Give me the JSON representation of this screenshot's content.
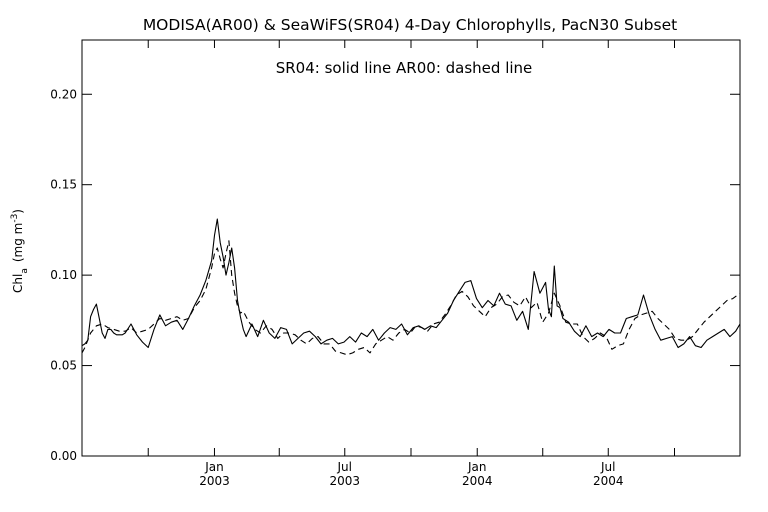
{
  "chart_data": {
    "type": "line",
    "title": "MODISA(AR00) & SeaWiFS(SR04) 4-Day Chlorophylls, PacN30 Subset",
    "annotation": "SR04: solid line   AR00: dashed line",
    "ylabel": "Chl_a (mg m^-3)",
    "ylabel_parts": {
      "main": "Chl",
      "sub": "a",
      "units": "(mg m",
      "sup": "-3",
      "close": ")"
    },
    "xlabel": "",
    "ylim": [
      0,
      0.23
    ],
    "xlim": [
      "2002-07-01",
      "2004-12-31"
    ],
    "yticks": [
      {
        "value": 0.0,
        "label": "0.00"
      },
      {
        "value": 0.05,
        "label": "0.05"
      },
      {
        "value": 0.1,
        "label": "0.10"
      },
      {
        "value": 0.15,
        "label": "0.15"
      },
      {
        "value": 0.2,
        "label": "0.20"
      }
    ],
    "xticks_minor": [
      "2002-10-01",
      "2003-04-01",
      "2003-10-01",
      "2004-04-01",
      "2004-10-01"
    ],
    "xticks_major": [
      {
        "date": "2003-01-01",
        "month": "Jan",
        "year": "2003"
      },
      {
        "date": "2003-07-01",
        "month": "Jul",
        "year": "2003"
      },
      {
        "date": "2004-01-01",
        "month": "Jan",
        "year": "2004"
      },
      {
        "date": "2004-07-01",
        "month": "Jul",
        "year": "2004"
      }
    ],
    "grid": false,
    "series": [
      {
        "name": "SR04",
        "style": "solid",
        "color": "#000000",
        "x": [
          "2002-07-01",
          "2002-07-05",
          "2002-07-09",
          "2002-07-13",
          "2002-07-17",
          "2002-07-21",
          "2002-07-25",
          "2002-07-29",
          "2002-08-02",
          "2002-08-06",
          "2002-08-10",
          "2002-08-14",
          "2002-08-18",
          "2002-08-22",
          "2002-08-26",
          "2002-08-30",
          "2002-09-07",
          "2002-09-15",
          "2002-09-23",
          "2002-10-01",
          "2002-10-09",
          "2002-10-17",
          "2002-10-25",
          "2002-11-02",
          "2002-11-10",
          "2002-11-18",
          "2002-11-26",
          "2002-12-04",
          "2002-12-12",
          "2002-12-20",
          "2002-12-28",
          "2003-01-01",
          "2003-01-05",
          "2003-01-09",
          "2003-01-13",
          "2003-01-17",
          "2003-01-21",
          "2003-01-25",
          "2003-01-29",
          "2003-02-02",
          "2003-02-06",
          "2003-02-10",
          "2003-02-14",
          "2003-02-22",
          "2003-03-02",
          "2003-03-10",
          "2003-03-18",
          "2003-03-26",
          "2003-04-03",
          "2003-04-11",
          "2003-04-19",
          "2003-04-27",
          "2003-05-05",
          "2003-05-13",
          "2003-05-21",
          "2003-05-29",
          "2003-06-06",
          "2003-06-14",
          "2003-06-22",
          "2003-06-30",
          "2003-07-08",
          "2003-07-16",
          "2003-07-24",
          "2003-08-01",
          "2003-08-09",
          "2003-08-17",
          "2003-08-25",
          "2003-09-02",
          "2003-09-10",
          "2003-09-18",
          "2003-09-26",
          "2003-10-04",
          "2003-10-12",
          "2003-10-20",
          "2003-10-28",
          "2003-11-05",
          "2003-11-13",
          "2003-11-21",
          "2003-11-29",
          "2003-12-07",
          "2003-12-15",
          "2003-12-23",
          "2003-12-31",
          "2004-01-08",
          "2004-01-16",
          "2004-01-24",
          "2004-02-01",
          "2004-02-09",
          "2004-02-17",
          "2004-02-25",
          "2004-03-04",
          "2004-03-12",
          "2004-03-20",
          "2004-03-28",
          "2004-04-05",
          "2004-04-09",
          "2004-04-13",
          "2004-04-17",
          "2004-04-21",
          "2004-04-25",
          "2004-04-29",
          "2004-05-03",
          "2004-05-07",
          "2004-05-15",
          "2004-05-23",
          "2004-05-31",
          "2004-06-08",
          "2004-06-16",
          "2004-06-24",
          "2004-07-02",
          "2004-07-10",
          "2004-07-18",
          "2004-07-26",
          "2004-08-03",
          "2004-08-11",
          "2004-08-19",
          "2004-08-27",
          "2004-09-04",
          "2004-09-12",
          "2004-09-20",
          "2004-09-28",
          "2004-10-06",
          "2004-10-14",
          "2004-10-22",
          "2004-10-30",
          "2004-11-07",
          "2004-11-15",
          "2004-11-23",
          "2004-12-01",
          "2004-12-09",
          "2004-12-17",
          "2004-12-25",
          "2004-12-31"
        ],
        "y": [
          0.061,
          0.062,
          0.064,
          0.077,
          0.081,
          0.084,
          0.076,
          0.068,
          0.065,
          0.07,
          0.07,
          0.068,
          0.067,
          0.067,
          0.067,
          0.068,
          0.073,
          0.067,
          0.063,
          0.06,
          0.07,
          0.078,
          0.072,
          0.074,
          0.075,
          0.07,
          0.076,
          0.083,
          0.089,
          0.097,
          0.108,
          0.122,
          0.131,
          0.118,
          0.11,
          0.1,
          0.107,
          0.115,
          0.104,
          0.086,
          0.077,
          0.07,
          0.066,
          0.073,
          0.066,
          0.075,
          0.068,
          0.065,
          0.071,
          0.07,
          0.062,
          0.065,
          0.068,
          0.069,
          0.066,
          0.062,
          0.064,
          0.065,
          0.062,
          0.063,
          0.066,
          0.063,
          0.068,
          0.066,
          0.07,
          0.064,
          0.068,
          0.071,
          0.07,
          0.073,
          0.067,
          0.071,
          0.072,
          0.07,
          0.072,
          0.071,
          0.075,
          0.079,
          0.086,
          0.091,
          0.096,
          0.097,
          0.087,
          0.082,
          0.086,
          0.083,
          0.09,
          0.084,
          0.083,
          0.075,
          0.08,
          0.07,
          0.102,
          0.09,
          0.096,
          0.081,
          0.077,
          0.105,
          0.083,
          0.082,
          0.076,
          0.075,
          0.074,
          0.069,
          0.066,
          0.072,
          0.066,
          0.068,
          0.066,
          0.07,
          0.068,
          0.068,
          0.076,
          0.077,
          0.078,
          0.089,
          0.078,
          0.07,
          0.064,
          0.065,
          0.066,
          0.06,
          0.062,
          0.066,
          0.061,
          0.06,
          0.064,
          0.066,
          0.068,
          0.07,
          0.066,
          0.069,
          0.073
        ]
      },
      {
        "name": "AR00",
        "style": "dashed",
        "color": "#000000",
        "x": [
          "2002-07-01",
          "2002-07-05",
          "2002-07-13",
          "2002-07-21",
          "2002-07-29",
          "2002-08-06",
          "2002-08-14",
          "2002-08-22",
          "2002-08-30",
          "2002-09-07",
          "2002-09-15",
          "2002-09-23",
          "2002-10-01",
          "2002-10-09",
          "2002-10-17",
          "2002-10-25",
          "2002-11-02",
          "2002-11-10",
          "2002-11-18",
          "2002-11-26",
          "2002-12-04",
          "2002-12-12",
          "2002-12-20",
          "2002-12-28",
          "2003-01-01",
          "2003-01-05",
          "2003-01-09",
          "2003-01-13",
          "2003-01-17",
          "2003-01-21",
          "2003-01-25",
          "2003-01-29",
          "2003-02-02",
          "2003-02-06",
          "2003-02-10",
          "2003-02-18",
          "2003-02-26",
          "2003-03-06",
          "2003-03-14",
          "2003-03-22",
          "2003-03-30",
          "2003-04-07",
          "2003-04-15",
          "2003-04-23",
          "2003-05-01",
          "2003-05-09",
          "2003-05-17",
          "2003-05-25",
          "2003-06-02",
          "2003-06-10",
          "2003-06-18",
          "2003-06-26",
          "2003-07-04",
          "2003-07-12",
          "2003-07-20",
          "2003-07-28",
          "2003-08-05",
          "2003-08-13",
          "2003-08-21",
          "2003-08-29",
          "2003-09-06",
          "2003-09-14",
          "2003-09-22",
          "2003-09-30",
          "2003-10-08",
          "2003-10-16",
          "2003-10-24",
          "2003-11-01",
          "2003-11-09",
          "2003-11-17",
          "2003-11-25",
          "2003-12-03",
          "2003-12-11",
          "2003-12-19",
          "2003-12-27",
          "2004-01-04",
          "2004-01-12",
          "2004-01-20",
          "2004-01-28",
          "2004-02-05",
          "2004-02-13",
          "2004-02-21",
          "2004-02-29",
          "2004-03-08",
          "2004-03-16",
          "2004-03-24",
          "2004-04-01",
          "2004-04-09",
          "2004-04-17",
          "2004-04-25",
          "2004-05-03",
          "2004-05-11",
          "2004-05-19",
          "2004-05-27",
          "2004-06-04",
          "2004-06-12",
          "2004-06-20",
          "2004-06-28",
          "2004-07-06",
          "2004-07-14",
          "2004-07-22",
          "2004-07-30",
          "2004-08-07",
          "2004-08-15",
          "2004-08-23",
          "2004-08-31",
          "2004-09-08",
          "2004-09-16",
          "2004-09-24",
          "2004-10-02",
          "2004-10-10",
          "2004-10-18",
          "2004-10-26",
          "2004-11-03",
          "2004-11-11",
          "2004-11-19",
          "2004-11-27",
          "2004-12-05",
          "2004-12-13",
          "2004-12-21",
          "2004-12-31"
        ],
        "y": [
          0.057,
          0.06,
          0.068,
          0.072,
          0.073,
          0.071,
          0.07,
          0.069,
          0.069,
          0.071,
          0.068,
          0.069,
          0.07,
          0.073,
          0.076,
          0.075,
          0.076,
          0.077,
          0.075,
          0.076,
          0.082,
          0.086,
          0.092,
          0.104,
          0.112,
          0.115,
          0.109,
          0.104,
          0.112,
          0.119,
          0.1,
          0.09,
          0.083,
          0.079,
          0.08,
          0.074,
          0.07,
          0.068,
          0.072,
          0.07,
          0.065,
          0.068,
          0.068,
          0.067,
          0.064,
          0.062,
          0.065,
          0.066,
          0.062,
          0.062,
          0.058,
          0.057,
          0.056,
          0.057,
          0.059,
          0.06,
          0.057,
          0.062,
          0.064,
          0.066,
          0.064,
          0.068,
          0.07,
          0.068,
          0.072,
          0.071,
          0.069,
          0.073,
          0.074,
          0.078,
          0.083,
          0.089,
          0.091,
          0.088,
          0.083,
          0.08,
          0.077,
          0.082,
          0.084,
          0.088,
          0.089,
          0.085,
          0.083,
          0.088,
          0.082,
          0.085,
          0.074,
          0.079,
          0.09,
          0.083,
          0.074,
          0.073,
          0.073,
          0.066,
          0.063,
          0.065,
          0.068,
          0.066,
          0.059,
          0.061,
          0.062,
          0.07,
          0.076,
          0.078,
          0.079,
          0.08,
          0.076,
          0.073,
          0.07,
          0.065,
          0.064,
          0.064,
          0.066,
          0.07,
          0.074,
          0.077,
          0.08,
          0.083,
          0.086,
          0.087,
          0.09
        ]
      }
    ]
  }
}
